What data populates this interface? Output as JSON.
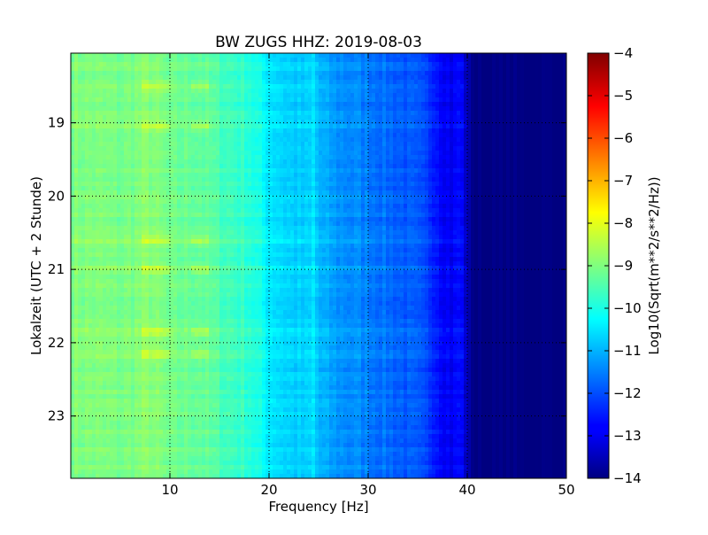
{
  "chart_data": {
    "type": "heatmap",
    "title": "BW ZUGS HHZ: 2019-08-03",
    "xlabel": "Frequency [Hz]",
    "ylabel": "Lokalzeit (UTC + 2 Stunde)",
    "xlim": [
      0,
      50
    ],
    "ylim": [
      18.05,
      23.85
    ],
    "y_inverted": true,
    "xticks": [
      10,
      20,
      30,
      40,
      50
    ],
    "yticks": [
      19,
      20,
      21,
      22,
      23
    ],
    "grid": true,
    "colormap": "jet",
    "colorbar": {
      "label": "Log10(Sqrt(m**2/s**2/Hz))",
      "range": [
        -14,
        -4
      ],
      "ticks": [
        -4,
        -5,
        -6,
        -7,
        -8,
        -9,
        -10,
        -11,
        -12,
        -13,
        -14
      ]
    },
    "spectrum_profile": {
      "frequency_hz": [
        0,
        2,
        5,
        8,
        10,
        13,
        15,
        18,
        20,
        22,
        24,
        24.5,
        25,
        27,
        30,
        33,
        35,
        36.5,
        37.5,
        38.5,
        39.3,
        40.2,
        41,
        50
      ],
      "log_amplitude": [
        -9.0,
        -9.0,
        -9.1,
        -8.9,
        -9.2,
        -9.2,
        -9.5,
        -9.8,
        -10.4,
        -10.7,
        -10.8,
        -10.5,
        -11.0,
        -11.3,
        -11.5,
        -11.8,
        -12.0,
        -12.3,
        -12.7,
        -12.9,
        -12.6,
        -13.7,
        -14.0,
        -14.0
      ]
    },
    "noise_bands_hz": [
      [
        7,
        10
      ],
      [
        12,
        14
      ]
    ],
    "noisy_times": [
      18.5,
      19.05,
      20.6,
      21.0,
      21.85,
      22.15
    ]
  }
}
